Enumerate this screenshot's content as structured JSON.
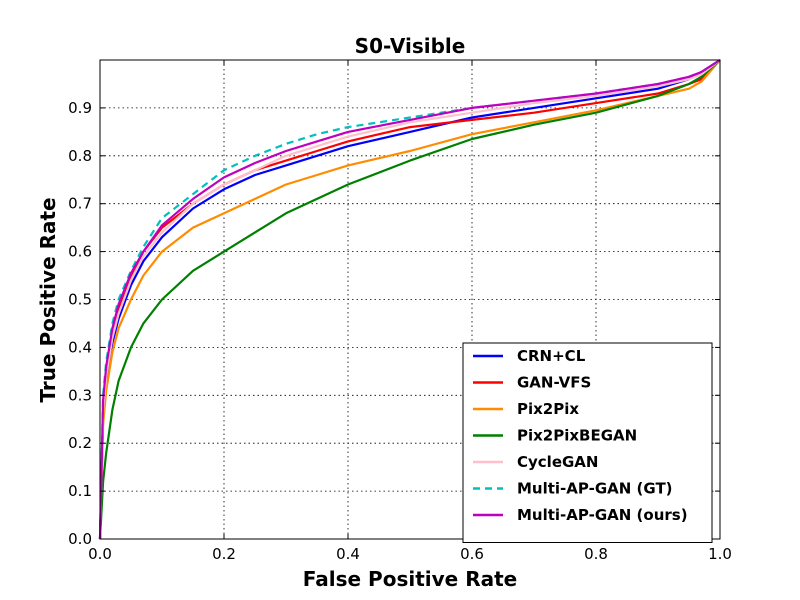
{
  "chart_data": {
    "type": "line",
    "title": "S0-Visible",
    "xlabel": "False Positive Rate",
    "ylabel": "True Positive Rate",
    "xlim": [
      0.0,
      1.0
    ],
    "ylim": [
      0.0,
      1.0
    ],
    "grid": true,
    "legend_position": "bottom-right",
    "x_ticks": [
      "0.0",
      "0.2",
      "0.4",
      "0.6",
      "0.8",
      "1.0"
    ],
    "y_ticks": [
      "0.0",
      "0.1",
      "0.2",
      "0.3",
      "0.4",
      "0.5",
      "0.6",
      "0.7",
      "0.8",
      "0.9"
    ],
    "x": [
      0,
      0.005,
      0.01,
      0.02,
      0.03,
      0.05,
      0.07,
      0.1,
      0.15,
      0.2,
      0.25,
      0.3,
      0.35,
      0.4,
      0.5,
      0.6,
      0.7,
      0.8,
      0.9,
      0.95,
      0.97,
      1.0
    ],
    "series": [
      {
        "name": "CRN+CL",
        "color": "#0000ff",
        "dash": "solid",
        "values": [
          0,
          0.25,
          0.33,
          0.41,
          0.46,
          0.53,
          0.58,
          0.63,
          0.69,
          0.73,
          0.76,
          0.78,
          0.8,
          0.82,
          0.85,
          0.88,
          0.9,
          0.92,
          0.94,
          0.96,
          0.975,
          1.0
        ]
      },
      {
        "name": "GAN-VFS",
        "color": "#ff0000",
        "dash": "solid",
        "values": [
          0,
          0.27,
          0.35,
          0.43,
          0.48,
          0.55,
          0.6,
          0.65,
          0.7,
          0.74,
          0.77,
          0.79,
          0.81,
          0.83,
          0.86,
          0.875,
          0.89,
          0.91,
          0.93,
          0.95,
          0.96,
          1.0
        ]
      },
      {
        "name": "Pix2Pix",
        "color": "#ff8c00",
        "dash": "solid",
        "values": [
          0,
          0.24,
          0.31,
          0.39,
          0.44,
          0.5,
          0.55,
          0.6,
          0.65,
          0.68,
          0.71,
          0.74,
          0.76,
          0.78,
          0.81,
          0.845,
          0.87,
          0.895,
          0.925,
          0.94,
          0.955,
          1.0
        ]
      },
      {
        "name": "Pix2PixBEGAN",
        "color": "#008000",
        "dash": "solid",
        "values": [
          0,
          0.12,
          0.18,
          0.27,
          0.33,
          0.4,
          0.45,
          0.5,
          0.56,
          0.6,
          0.64,
          0.68,
          0.71,
          0.74,
          0.79,
          0.835,
          0.865,
          0.89,
          0.925,
          0.95,
          0.965,
          1.0
        ]
      },
      {
        "name": "CycleGAN",
        "color": "#ffc0cb",
        "dash": "solid",
        "values": [
          0,
          0.27,
          0.34,
          0.42,
          0.47,
          0.54,
          0.59,
          0.64,
          0.7,
          0.74,
          0.77,
          0.8,
          0.82,
          0.84,
          0.87,
          0.89,
          0.91,
          0.925,
          0.945,
          0.96,
          0.97,
          1.0
        ]
      },
      {
        "name": "Multi-AP-GAN (GT)",
        "color": "#00bfbf",
        "dash": "dashed",
        "values": [
          0,
          0.3,
          0.37,
          0.45,
          0.5,
          0.56,
          0.61,
          0.67,
          0.72,
          0.77,
          0.8,
          0.825,
          0.845,
          0.86,
          0.88,
          0.9,
          0.915,
          0.93,
          0.95,
          0.965,
          0.975,
          1.0
        ]
      },
      {
        "name": "Multi-AP-GAN (ours)",
        "color": "#bf00bf",
        "dash": "solid",
        "values": [
          0,
          0.29,
          0.36,
          0.44,
          0.49,
          0.555,
          0.6,
          0.655,
          0.71,
          0.755,
          0.785,
          0.81,
          0.83,
          0.85,
          0.875,
          0.9,
          0.915,
          0.93,
          0.95,
          0.965,
          0.975,
          1.0
        ]
      }
    ]
  }
}
